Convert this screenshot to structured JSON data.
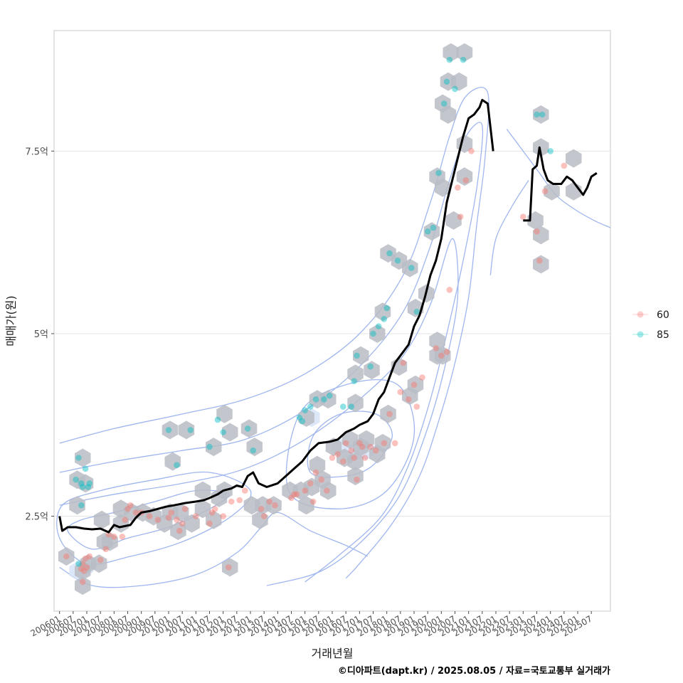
{
  "chart_data": {
    "type": "scatter",
    "xlabel": "거래년월",
    "ylabel": "매매가(원)",
    "caption": "©디아파트(dapt.kr) / 2025.08.05 / 자료=국토교통부 실거래가",
    "x_tick_labels": [
      "200601",
      "200607",
      "200701",
      "200707",
      "200801",
      "200807",
      "200901",
      "200907",
      "201001",
      "201007",
      "201101",
      "201107",
      "201201",
      "201207",
      "201301",
      "201307",
      "201401",
      "201407",
      "201501",
      "201507",
      "201601",
      "201607",
      "201701",
      "201707",
      "201801",
      "201807",
      "201901",
      "201907",
      "202001",
      "202007",
      "202101",
      "202107",
      "202201",
      "202207",
      "202301",
      "202307",
      "202401",
      "202407",
      "202501",
      "202507"
    ],
    "y_ticks": [
      {
        "value": 2.5,
        "label": "2.5억"
      },
      {
        "value": 5,
        "label": "5억"
      },
      {
        "value": 7.5,
        "label": "7.5억"
      }
    ],
    "xlim": [
      2005.8,
      2026.2
    ],
    "ylim": [
      1.2,
      9.15
    ],
    "grid": true,
    "legend_position": "right",
    "colors": {
      "s60": "#F8766D",
      "s85": "#00BFC4",
      "line": "#000000",
      "hex": "#b8bcc4",
      "contour": "#9fb6ee"
    },
    "series": [
      {
        "name": "60",
        "color": "#F8766D",
        "points": [
          [
            2006.25,
            1.95
          ],
          [
            2006.8,
            1.78
          ],
          [
            2006.85,
            1.85
          ],
          [
            2006.9,
            1.75
          ],
          [
            2006.95,
            1.92
          ],
          [
            2007.0,
            1.8
          ],
          [
            2007.1,
            1.95
          ],
          [
            2006.85,
            1.6
          ],
          [
            2007.5,
            1.9
          ],
          [
            2007.7,
            2.05
          ],
          [
            2007.8,
            2.25
          ],
          [
            2008.0,
            2.22
          ],
          [
            2008.3,
            2.22
          ],
          [
            2008.4,
            2.45
          ],
          [
            2008.5,
            2.6
          ],
          [
            2008.6,
            2.65
          ],
          [
            2008.8,
            2.55
          ],
          [
            2009.0,
            2.55
          ],
          [
            2009.3,
            2.5
          ],
          [
            2009.6,
            2.45
          ],
          [
            2010.0,
            2.48
          ],
          [
            2010.1,
            2.55
          ],
          [
            2010.3,
            2.45
          ],
          [
            2010.4,
            2.3
          ],
          [
            2010.5,
            2.4
          ],
          [
            2010.6,
            2.6
          ],
          [
            2011.0,
            2.5
          ],
          [
            2011.5,
            2.4
          ],
          [
            2011.6,
            2.55
          ],
          [
            2011.7,
            2.6
          ],
          [
            2012.0,
            2.5
          ],
          [
            2012.3,
            2.7
          ],
          [
            2012.6,
            2.72
          ],
          [
            2012.8,
            2.85
          ],
          [
            2012.2,
            1.8
          ],
          [
            2013.4,
            2.6
          ],
          [
            2013.5,
            2.5
          ],
          [
            2013.7,
            2.7
          ],
          [
            2013.9,
            2.65
          ],
          [
            2014.5,
            2.75
          ],
          [
            2014.6,
            2.8
          ],
          [
            2014.7,
            2.8
          ],
          [
            2015.0,
            2.85
          ],
          [
            2015.2,
            2.95
          ],
          [
            2015.3,
            2.7
          ],
          [
            2015.4,
            3.1
          ],
          [
            2015.6,
            3.0
          ],
          [
            2015.8,
            2.85
          ],
          [
            2016.0,
            3.3
          ],
          [
            2016.2,
            3.35
          ],
          [
            2016.4,
            3.25
          ],
          [
            2016.5,
            3.5
          ],
          [
            2016.7,
            3.4
          ],
          [
            2016.8,
            3.3
          ],
          [
            2016.9,
            3.0
          ],
          [
            2017.0,
            3.5
          ],
          [
            2017.1,
            3.45
          ],
          [
            2017.2,
            3.3
          ],
          [
            2017.4,
            3.45
          ],
          [
            2017.6,
            3.4
          ],
          [
            2017.9,
            3.5
          ],
          [
            2018.1,
            3.9
          ],
          [
            2018.3,
            3.5
          ],
          [
            2018.5,
            4.2
          ],
          [
            2018.6,
            4.6
          ],
          [
            2018.8,
            4.1
          ],
          [
            2019.0,
            4.3
          ],
          [
            2019.1,
            4.0
          ],
          [
            2019.3,
            4.4
          ],
          [
            2019.8,
            4.8
          ],
          [
            2020.0,
            4.7
          ],
          [
            2020.2,
            4.75
          ],
          [
            2020.3,
            5.6
          ],
          [
            2020.6,
            7.0
          ],
          [
            2020.7,
            6.6
          ],
          [
            2020.9,
            7.1
          ],
          [
            2021.1,
            7.5
          ],
          [
            2023.0,
            6.6
          ],
          [
            2023.5,
            6.4
          ],
          [
            2023.6,
            6.0
          ],
          [
            2023.8,
            6.95
          ],
          [
            2024.5,
            7.3
          ]
        ]
      },
      {
        "name": "85",
        "color": "#00BFC4",
        "points": [
          [
            2006.6,
            3.0
          ],
          [
            2006.7,
            3.3
          ],
          [
            2006.8,
            2.95
          ],
          [
            2006.85,
            2.9
          ],
          [
            2006.95,
            3.15
          ],
          [
            2007.05,
            2.9
          ],
          [
            2007.1,
            2.95
          ],
          [
            2006.8,
            2.65
          ],
          [
            2006.7,
            1.85
          ],
          [
            2010.0,
            3.68
          ],
          [
            2010.3,
            3.2
          ],
          [
            2010.8,
            3.68
          ],
          [
            2011.5,
            3.45
          ],
          [
            2011.8,
            3.82
          ],
          [
            2012.0,
            3.65
          ],
          [
            2012.9,
            3.7
          ],
          [
            2013.1,
            3.4
          ],
          [
            2014.8,
            3.85
          ],
          [
            2014.9,
            3.8
          ],
          [
            2015.0,
            3.95
          ],
          [
            2015.2,
            4.0
          ],
          [
            2015.4,
            4.1
          ],
          [
            2015.7,
            4.1
          ],
          [
            2015.9,
            4.15
          ],
          [
            2016.4,
            4.0
          ],
          [
            2016.7,
            4.0
          ],
          [
            2016.8,
            4.35
          ],
          [
            2016.9,
            4.7
          ],
          [
            2017.4,
            4.55
          ],
          [
            2017.5,
            5.0
          ],
          [
            2017.7,
            5.1
          ],
          [
            2017.9,
            5.2
          ],
          [
            2018.0,
            5.35
          ],
          [
            2018.1,
            6.1
          ],
          [
            2018.4,
            6.0
          ],
          [
            2018.9,
            5.9
          ],
          [
            2019.1,
            5.3
          ],
          [
            2019.5,
            6.4
          ],
          [
            2019.7,
            6.45
          ],
          [
            2019.9,
            7.2
          ],
          [
            2020.1,
            8.15
          ],
          [
            2020.2,
            8.45
          ],
          [
            2020.3,
            8.75
          ],
          [
            2020.5,
            8.35
          ],
          [
            2020.8,
            8.75
          ],
          [
            2023.5,
            8.0
          ],
          [
            2023.7,
            8.0
          ],
          [
            2024.0,
            7.5
          ]
        ]
      }
    ],
    "moving_average": {
      "segments": [
        [
          [
            2006.0,
            2.5
          ],
          [
            2006.1,
            2.3
          ],
          [
            2006.3,
            2.35
          ],
          [
            2006.6,
            2.35
          ],
          [
            2006.9,
            2.33
          ],
          [
            2007.2,
            2.32
          ],
          [
            2007.5,
            2.33
          ],
          [
            2007.8,
            2.28
          ],
          [
            2008.0,
            2.38
          ],
          [
            2008.2,
            2.35
          ],
          [
            2008.6,
            2.38
          ],
          [
            2008.8,
            2.48
          ],
          [
            2009.0,
            2.55
          ],
          [
            2009.3,
            2.57
          ],
          [
            2009.6,
            2.6
          ],
          [
            2009.9,
            2.63
          ],
          [
            2010.2,
            2.65
          ],
          [
            2010.6,
            2.68
          ],
          [
            2011.0,
            2.7
          ],
          [
            2011.3,
            2.72
          ],
          [
            2011.5,
            2.75
          ],
          [
            2011.8,
            2.8
          ],
          [
            2012.0,
            2.85
          ],
          [
            2012.3,
            2.88
          ],
          [
            2012.5,
            2.92
          ],
          [
            2012.7,
            2.9
          ],
          [
            2012.9,
            3.05
          ],
          [
            2013.1,
            3.1
          ],
          [
            2013.3,
            2.95
          ],
          [
            2013.6,
            2.9
          ],
          [
            2014.0,
            2.95
          ],
          [
            2014.3,
            3.05
          ],
          [
            2014.6,
            3.15
          ],
          [
            2014.9,
            3.25
          ],
          [
            2015.2,
            3.4
          ],
          [
            2015.5,
            3.5
          ],
          [
            2015.9,
            3.52
          ],
          [
            2016.2,
            3.55
          ],
          [
            2016.5,
            3.65
          ],
          [
            2016.8,
            3.7
          ],
          [
            2017.0,
            3.75
          ],
          [
            2017.3,
            3.8
          ],
          [
            2017.5,
            3.9
          ],
          [
            2017.7,
            4.1
          ],
          [
            2017.9,
            4.2
          ],
          [
            2018.1,
            4.4
          ],
          [
            2018.3,
            4.6
          ],
          [
            2018.5,
            4.7
          ],
          [
            2018.8,
            4.85
          ],
          [
            2019.0,
            5.1
          ],
          [
            2019.2,
            5.25
          ],
          [
            2019.4,
            5.5
          ],
          [
            2019.6,
            5.8
          ],
          [
            2019.8,
            6.0
          ],
          [
            2020.0,
            6.3
          ],
          [
            2020.2,
            6.8
          ],
          [
            2020.4,
            7.1
          ],
          [
            2020.6,
            7.4
          ],
          [
            2020.8,
            7.7
          ],
          [
            2021.0,
            7.95
          ],
          [
            2021.2,
            8.0
          ],
          [
            2021.4,
            8.1
          ],
          [
            2021.5,
            8.2
          ],
          [
            2021.7,
            8.15
          ],
          [
            2021.9,
            7.5
          ]
        ],
        [
          [
            2023.0,
            6.55
          ],
          [
            2023.25,
            6.55
          ],
          [
            2023.35,
            7.25
          ],
          [
            2023.5,
            7.3
          ],
          [
            2023.6,
            7.55
          ],
          [
            2023.75,
            7.25
          ],
          [
            2023.9,
            7.1
          ],
          [
            2024.1,
            7.05
          ],
          [
            2024.4,
            7.05
          ],
          [
            2024.6,
            7.15
          ],
          [
            2024.8,
            7.1
          ],
          [
            2025.0,
            7.0
          ],
          [
            2025.2,
            6.9
          ],
          [
            2025.35,
            7.0
          ],
          [
            2025.5,
            7.15
          ],
          [
            2025.7,
            7.2
          ]
        ]
      ]
    },
    "hex_bins": [
      [
        2006.25,
        1.95
      ],
      [
        2006.85,
        1.75
      ],
      [
        2007.05,
        1.85
      ],
      [
        2006.85,
        1.55
      ],
      [
        2007.45,
        1.85
      ],
      [
        2007.65,
        2.15
      ],
      [
        2007.55,
        2.45
      ],
      [
        2007.85,
        2.15
      ],
      [
        2008.25,
        2.4
      ],
      [
        2008.65,
        2.55
      ],
      [
        2008.25,
        2.6
      ],
      [
        2009.05,
        2.55
      ],
      [
        2009.45,
        2.5
      ],
      [
        2009.85,
        2.4
      ],
      [
        2010.05,
        2.55
      ],
      [
        2010.35,
        2.3
      ],
      [
        2010.45,
        2.55
      ],
      [
        2010.85,
        2.4
      ],
      [
        2011.25,
        2.6
      ],
      [
        2011.65,
        2.45
      ],
      [
        2011.25,
        2.85
      ],
      [
        2011.85,
        2.75
      ],
      [
        2012.05,
        2.85
      ],
      [
        2006.65,
        3.0
      ],
      [
        2006.85,
        3.3
      ],
      [
        2006.95,
        2.95
      ],
      [
        2006.65,
        2.65
      ],
      [
        2010.05,
        3.68
      ],
      [
        2010.65,
        3.68
      ],
      [
        2010.15,
        3.25
      ],
      [
        2011.65,
        3.45
      ],
      [
        2012.05,
        3.9
      ],
      [
        2012.25,
        3.65
      ],
      [
        2012.25,
        1.8
      ],
      [
        2012.95,
        3.7
      ],
      [
        2013.15,
        3.45
      ],
      [
        2013.05,
        2.65
      ],
      [
        2013.45,
        2.65
      ],
      [
        2013.35,
        2.45
      ],
      [
        2013.85,
        2.65
      ],
      [
        2014.45,
        2.85
      ],
      [
        2014.85,
        2.85
      ],
      [
        2015.25,
        2.9
      ],
      [
        2015.05,
        2.65
      ],
      [
        2015.45,
        3.2
      ],
      [
        2015.65,
        3.0
      ],
      [
        2015.85,
        2.85
      ],
      [
        2015.05,
        3.85
      ],
      [
        2015.45,
        4.1
      ],
      [
        2015.85,
        4.1
      ],
      [
        2016.05,
        3.45
      ],
      [
        2016.45,
        3.3
      ],
      [
        2016.65,
        3.55
      ],
      [
        2016.85,
        3.25
      ],
      [
        2016.85,
        3.05
      ],
      [
        2016.85,
        4.05
      ],
      [
        2016.85,
        4.45
      ],
      [
        2017.05,
        3.45
      ],
      [
        2017.25,
        3.55
      ],
      [
        2017.65,
        3.35
      ],
      [
        2017.85,
        3.5
      ],
      [
        2017.05,
        4.7
      ],
      [
        2017.45,
        4.5
      ],
      [
        2017.65,
        5.0
      ],
      [
        2017.85,
        5.3
      ],
      [
        2018.05,
        3.9
      ],
      [
        2018.45,
        4.55
      ],
      [
        2018.85,
        4.15
      ],
      [
        2019.05,
        4.3
      ],
      [
        2018.05,
        6.1
      ],
      [
        2018.45,
        6.0
      ],
      [
        2018.85,
        5.9
      ],
      [
        2019.05,
        5.35
      ],
      [
        2019.85,
        4.7
      ],
      [
        2019.85,
        4.9
      ],
      [
        2020.05,
        4.7
      ],
      [
        2019.45,
        5.55
      ],
      [
        2019.65,
        6.4
      ],
      [
        2019.85,
        7.15
      ],
      [
        2020.05,
        7.0
      ],
      [
        2020.05,
        8.15
      ],
      [
        2020.25,
        8.45
      ],
      [
        2020.25,
        8.0
      ],
      [
        2020.35,
        8.85
      ],
      [
        2020.65,
        8.45
      ],
      [
        2020.85,
        8.85
      ],
      [
        2020.45,
        6.55
      ],
      [
        2020.85,
        7.15
      ],
      [
        2020.85,
        7.6
      ],
      [
        2023.65,
        8.0
      ],
      [
        2023.65,
        7.55
      ],
      [
        2023.45,
        6.55
      ],
      [
        2023.65,
        6.35
      ],
      [
        2023.65,
        5.95
      ],
      [
        2024.05,
        6.95
      ],
      [
        2024.85,
        7.4
      ],
      [
        2024.85,
        6.95
      ]
    ],
    "hex_light": [
      [
        2006.65,
        1.75
      ],
      [
        2006.95,
        1.8
      ],
      [
        2016.25,
        3.45
      ],
      [
        2016.65,
        3.35
      ],
      [
        2016.95,
        3.4
      ],
      [
        2017.25,
        3.4
      ],
      [
        2015.25,
        3.85
      ]
    ]
  }
}
